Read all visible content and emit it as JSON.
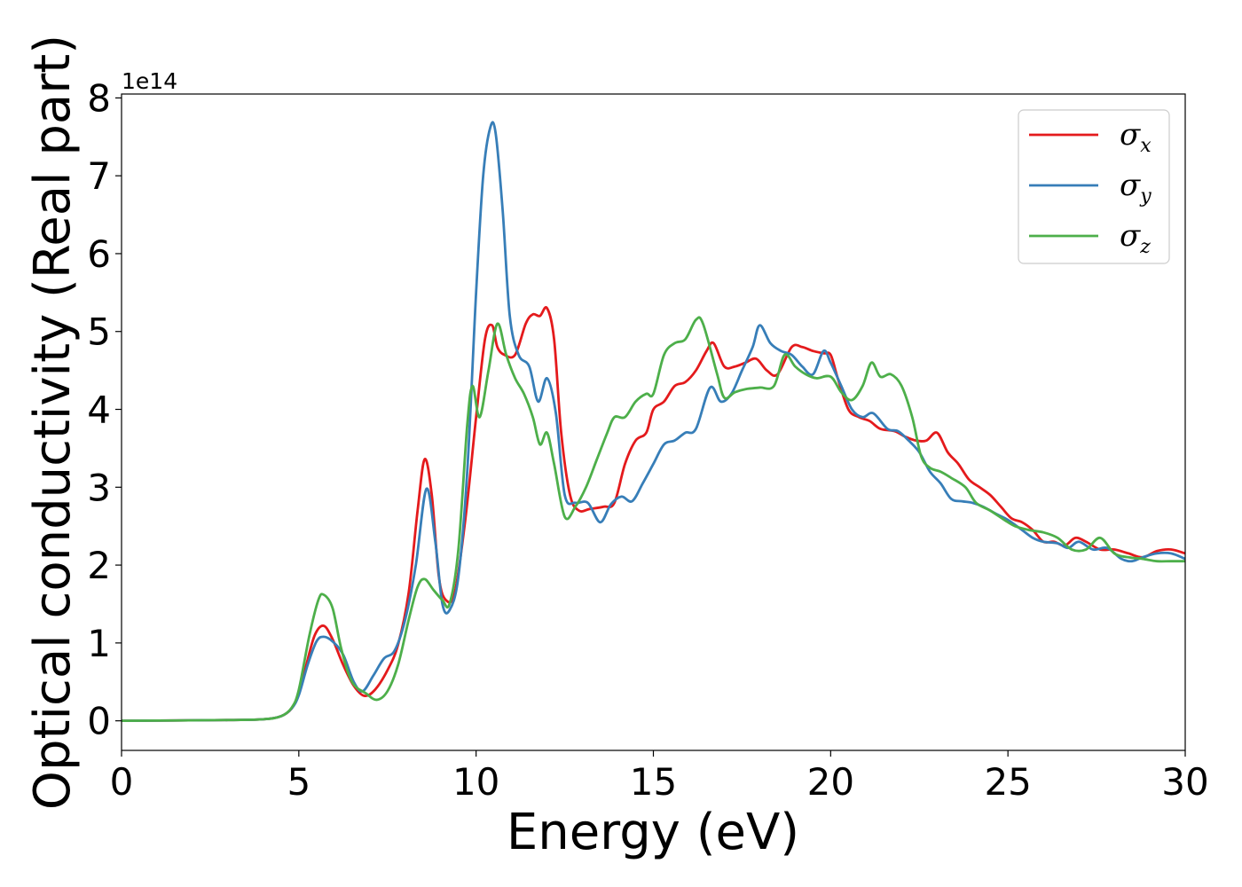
{
  "chart_data": {
    "type": "line",
    "xlabel": "Energy (eV)",
    "ylabel": "Optical conductivity (Real part)",
    "y_offset_label": "1e14",
    "xlim": [
      0,
      30
    ],
    "ylim": [
      -0.38,
      8.05
    ],
    "x_ticks": [
      0,
      5,
      10,
      15,
      20,
      25,
      30
    ],
    "x_tick_labels": [
      "0",
      "5",
      "10",
      "15",
      "20",
      "25",
      "30"
    ],
    "y_ticks": [
      0,
      1,
      2,
      3,
      4,
      5,
      6,
      7,
      8
    ],
    "y_tick_labels": [
      "0",
      "1",
      "2",
      "3",
      "4",
      "5",
      "6",
      "7",
      "8"
    ],
    "grid": false,
    "legend": "top-right",
    "series": [
      {
        "name": "σx",
        "symbol": "σ",
        "subscript": "x",
        "color": "#e41a1c",
        "points": [
          [
            0,
            0
          ],
          [
            3,
            0.01
          ],
          [
            4,
            0.02
          ],
          [
            4.5,
            0.06
          ],
          [
            4.8,
            0.16
          ],
          [
            5.0,
            0.35
          ],
          [
            5.2,
            0.7
          ],
          [
            5.45,
            1.1
          ],
          [
            5.7,
            1.22
          ],
          [
            5.95,
            1.05
          ],
          [
            6.25,
            0.72
          ],
          [
            6.55,
            0.45
          ],
          [
            6.85,
            0.32
          ],
          [
            7.15,
            0.4
          ],
          [
            7.5,
            0.65
          ],
          [
            7.8,
            0.98
          ],
          [
            8.1,
            1.65
          ],
          [
            8.35,
            2.7
          ],
          [
            8.55,
            3.36
          ],
          [
            8.75,
            2.9
          ],
          [
            8.95,
            1.85
          ],
          [
            9.15,
            1.55
          ],
          [
            9.4,
            1.65
          ],
          [
            9.7,
            2.6
          ],
          [
            10.0,
            3.9
          ],
          [
            10.25,
            4.9
          ],
          [
            10.45,
            5.08
          ],
          [
            10.6,
            4.8
          ],
          [
            10.8,
            4.7
          ],
          [
            11.1,
            4.7
          ],
          [
            11.4,
            5.1
          ],
          [
            11.6,
            5.22
          ],
          [
            11.8,
            5.2
          ],
          [
            12.0,
            5.3
          ],
          [
            12.2,
            4.9
          ],
          [
            12.4,
            3.7
          ],
          [
            12.65,
            2.9
          ],
          [
            12.9,
            2.7
          ],
          [
            13.2,
            2.72
          ],
          [
            13.6,
            2.75
          ],
          [
            13.9,
            2.8
          ],
          [
            14.2,
            3.3
          ],
          [
            14.5,
            3.6
          ],
          [
            14.8,
            3.7
          ],
          [
            15.0,
            4.0
          ],
          [
            15.3,
            4.1
          ],
          [
            15.6,
            4.3
          ],
          [
            15.9,
            4.35
          ],
          [
            16.2,
            4.5
          ],
          [
            16.5,
            4.75
          ],
          [
            16.7,
            4.85
          ],
          [
            17.0,
            4.55
          ],
          [
            17.3,
            4.55
          ],
          [
            17.6,
            4.6
          ],
          [
            17.9,
            4.65
          ],
          [
            18.2,
            4.5
          ],
          [
            18.5,
            4.45
          ],
          [
            18.9,
            4.8
          ],
          [
            19.2,
            4.8
          ],
          [
            19.5,
            4.75
          ],
          [
            19.8,
            4.72
          ],
          [
            20.0,
            4.7
          ],
          [
            20.2,
            4.4
          ],
          [
            20.5,
            4.0
          ],
          [
            20.8,
            3.9
          ],
          [
            21.1,
            3.85
          ],
          [
            21.4,
            3.75
          ],
          [
            21.8,
            3.72
          ],
          [
            22.1,
            3.65
          ],
          [
            22.4,
            3.6
          ],
          [
            22.7,
            3.6
          ],
          [
            23.0,
            3.7
          ],
          [
            23.3,
            3.45
          ],
          [
            23.6,
            3.3
          ],
          [
            23.9,
            3.1
          ],
          [
            24.2,
            3.0
          ],
          [
            24.5,
            2.9
          ],
          [
            24.8,
            2.75
          ],
          [
            25.1,
            2.6
          ],
          [
            25.4,
            2.55
          ],
          [
            25.7,
            2.45
          ],
          [
            26.0,
            2.3
          ],
          [
            26.3,
            2.3
          ],
          [
            26.6,
            2.25
          ],
          [
            26.9,
            2.35
          ],
          [
            27.2,
            2.3
          ],
          [
            27.6,
            2.2
          ],
          [
            28.0,
            2.2
          ],
          [
            28.4,
            2.15
          ],
          [
            28.8,
            2.1
          ],
          [
            29.2,
            2.18
          ],
          [
            29.6,
            2.2
          ],
          [
            30.0,
            2.15
          ]
        ]
      },
      {
        "name": "σy",
        "symbol": "σ",
        "subscript": "y",
        "color": "#377eb8",
        "points": [
          [
            0,
            0
          ],
          [
            3,
            0.01
          ],
          [
            4,
            0.02
          ],
          [
            4.5,
            0.06
          ],
          [
            4.8,
            0.16
          ],
          [
            5.0,
            0.33
          ],
          [
            5.25,
            0.72
          ],
          [
            5.5,
            1.02
          ],
          [
            5.7,
            1.08
          ],
          [
            5.95,
            1.02
          ],
          [
            6.25,
            0.85
          ],
          [
            6.55,
            0.5
          ],
          [
            6.8,
            0.38
          ],
          [
            7.1,
            0.58
          ],
          [
            7.4,
            0.8
          ],
          [
            7.7,
            0.9
          ],
          [
            8.0,
            1.3
          ],
          [
            8.3,
            2.0
          ],
          [
            8.6,
            2.98
          ],
          [
            8.85,
            2.3
          ],
          [
            9.05,
            1.5
          ],
          [
            9.25,
            1.42
          ],
          [
            9.5,
            1.85
          ],
          [
            9.75,
            3.2
          ],
          [
            10.0,
            5.5
          ],
          [
            10.2,
            7.0
          ],
          [
            10.4,
            7.62
          ],
          [
            10.55,
            7.55
          ],
          [
            10.75,
            6.55
          ],
          [
            10.95,
            5.2
          ],
          [
            11.2,
            4.7
          ],
          [
            11.5,
            4.55
          ],
          [
            11.75,
            4.1
          ],
          [
            12.0,
            4.4
          ],
          [
            12.25,
            3.95
          ],
          [
            12.5,
            2.9
          ],
          [
            12.8,
            2.8
          ],
          [
            13.15,
            2.8
          ],
          [
            13.5,
            2.55
          ],
          [
            13.8,
            2.78
          ],
          [
            14.1,
            2.88
          ],
          [
            14.4,
            2.82
          ],
          [
            14.7,
            3.05
          ],
          [
            15.0,
            3.3
          ],
          [
            15.3,
            3.55
          ],
          [
            15.6,
            3.6
          ],
          [
            15.9,
            3.7
          ],
          [
            16.2,
            3.75
          ],
          [
            16.6,
            4.28
          ],
          [
            16.9,
            4.1
          ],
          [
            17.2,
            4.2
          ],
          [
            17.5,
            4.5
          ],
          [
            17.8,
            4.8
          ],
          [
            18.0,
            5.08
          ],
          [
            18.3,
            4.85
          ],
          [
            18.6,
            4.75
          ],
          [
            18.9,
            4.7
          ],
          [
            19.2,
            4.55
          ],
          [
            19.5,
            4.45
          ],
          [
            19.8,
            4.75
          ],
          [
            20.0,
            4.6
          ],
          [
            20.3,
            4.3
          ],
          [
            20.6,
            4.0
          ],
          [
            20.9,
            3.9
          ],
          [
            21.2,
            3.95
          ],
          [
            21.6,
            3.75
          ],
          [
            21.9,
            3.72
          ],
          [
            22.2,
            3.6
          ],
          [
            22.5,
            3.45
          ],
          [
            22.8,
            3.2
          ],
          [
            23.1,
            3.05
          ],
          [
            23.4,
            2.85
          ],
          [
            23.7,
            2.82
          ],
          [
            24.0,
            2.8
          ],
          [
            24.3,
            2.75
          ],
          [
            24.7,
            2.65
          ],
          [
            25.0,
            2.58
          ],
          [
            25.4,
            2.45
          ],
          [
            25.7,
            2.35
          ],
          [
            26.0,
            2.3
          ],
          [
            26.4,
            2.28
          ],
          [
            26.7,
            2.22
          ],
          [
            27.0,
            2.3
          ],
          [
            27.4,
            2.2
          ],
          [
            27.8,
            2.22
          ],
          [
            28.2,
            2.08
          ],
          [
            28.5,
            2.05
          ],
          [
            28.8,
            2.1
          ],
          [
            29.2,
            2.15
          ],
          [
            29.6,
            2.15
          ],
          [
            30.0,
            2.08
          ]
        ]
      },
      {
        "name": "σz",
        "symbol": "σ",
        "subscript": "z",
        "color": "#4daf4a",
        "points": [
          [
            0,
            0
          ],
          [
            3,
            0.01
          ],
          [
            4,
            0.02
          ],
          [
            4.5,
            0.06
          ],
          [
            4.8,
            0.17
          ],
          [
            5.0,
            0.4
          ],
          [
            5.3,
            1.1
          ],
          [
            5.55,
            1.55
          ],
          [
            5.7,
            1.62
          ],
          [
            5.95,
            1.45
          ],
          [
            6.2,
            0.92
          ],
          [
            6.5,
            0.5
          ],
          [
            6.9,
            0.35
          ],
          [
            7.2,
            0.27
          ],
          [
            7.5,
            0.38
          ],
          [
            7.8,
            0.72
          ],
          [
            8.1,
            1.3
          ],
          [
            8.35,
            1.72
          ],
          [
            8.55,
            1.82
          ],
          [
            8.8,
            1.68
          ],
          [
            9.05,
            1.55
          ],
          [
            9.25,
            1.5
          ],
          [
            9.5,
            2.2
          ],
          [
            9.75,
            3.8
          ],
          [
            9.9,
            4.3
          ],
          [
            10.1,
            3.9
          ],
          [
            10.35,
            4.5
          ],
          [
            10.6,
            5.1
          ],
          [
            10.85,
            4.7
          ],
          [
            11.1,
            4.4
          ],
          [
            11.35,
            4.2
          ],
          [
            11.6,
            3.9
          ],
          [
            11.8,
            3.55
          ],
          [
            12.0,
            3.7
          ],
          [
            12.2,
            3.3
          ],
          [
            12.5,
            2.62
          ],
          [
            12.8,
            2.75
          ],
          [
            13.1,
            3.0
          ],
          [
            13.4,
            3.35
          ],
          [
            13.7,
            3.7
          ],
          [
            13.9,
            3.9
          ],
          [
            14.2,
            3.9
          ],
          [
            14.5,
            4.1
          ],
          [
            14.8,
            4.2
          ],
          [
            15.0,
            4.2
          ],
          [
            15.3,
            4.7
          ],
          [
            15.6,
            4.85
          ],
          [
            15.9,
            4.9
          ],
          [
            16.2,
            5.15
          ],
          [
            16.4,
            5.1
          ],
          [
            16.8,
            4.45
          ],
          [
            17.0,
            4.15
          ],
          [
            17.3,
            4.22
          ],
          [
            17.6,
            4.26
          ],
          [
            18.0,
            4.28
          ],
          [
            18.4,
            4.3
          ],
          [
            18.7,
            4.7
          ],
          [
            19.0,
            4.55
          ],
          [
            19.3,
            4.45
          ],
          [
            19.6,
            4.4
          ],
          [
            20.0,
            4.42
          ],
          [
            20.3,
            4.22
          ],
          [
            20.6,
            4.12
          ],
          [
            20.9,
            4.3
          ],
          [
            21.15,
            4.6
          ],
          [
            21.4,
            4.42
          ],
          [
            21.7,
            4.45
          ],
          [
            22.0,
            4.3
          ],
          [
            22.3,
            3.9
          ],
          [
            22.55,
            3.4
          ],
          [
            22.8,
            3.25
          ],
          [
            23.1,
            3.2
          ],
          [
            23.4,
            3.12
          ],
          [
            23.8,
            3.0
          ],
          [
            24.1,
            2.8
          ],
          [
            24.5,
            2.7
          ],
          [
            24.9,
            2.58
          ],
          [
            25.2,
            2.5
          ],
          [
            25.6,
            2.45
          ],
          [
            26.0,
            2.42
          ],
          [
            26.4,
            2.35
          ],
          [
            26.8,
            2.2
          ],
          [
            27.2,
            2.2
          ],
          [
            27.6,
            2.35
          ],
          [
            28.0,
            2.15
          ],
          [
            28.4,
            2.1
          ],
          [
            28.8,
            2.08
          ],
          [
            29.2,
            2.05
          ],
          [
            29.6,
            2.05
          ],
          [
            30.0,
            2.05
          ]
        ]
      }
    ]
  }
}
